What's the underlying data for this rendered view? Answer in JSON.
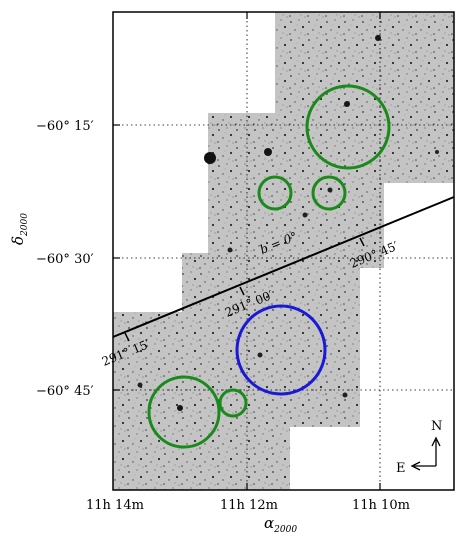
{
  "figure": {
    "y_axis_title": "δ",
    "y_axis_title_sub": "2000",
    "x_axis_title": "α",
    "x_axis_title_sub": "2000",
    "dec_ticks": [
      {
        "label": "−60° 15′"
      },
      {
        "label": "−60° 30′"
      },
      {
        "label": "−60° 45′"
      }
    ],
    "ra_ticks": [
      {
        "label": "11h 14m"
      },
      {
        "label": "11h 12m"
      },
      {
        "label": "11h 10m"
      }
    ],
    "galactic": {
      "plane_label": "b = 0°",
      "longitude_labels": [
        {
          "label": "290° 45′"
        },
        {
          "label": "291° 00′"
        },
        {
          "label": "291° 15′"
        }
      ]
    },
    "compass": {
      "north_label": "N",
      "east_label": "E"
    },
    "circles": [
      {
        "name": "large-green-ne",
        "color": "#1a8a1a"
      },
      {
        "name": "small-green-center-left",
        "color": "#1a8a1a"
      },
      {
        "name": "small-green-center-right",
        "color": "#1a8a1a"
      },
      {
        "name": "blue-center",
        "color": "#1a1ad6"
      },
      {
        "name": "large-green-sw",
        "color": "#1a8a1a"
      },
      {
        "name": "small-green-sw",
        "color": "#1a8a1a"
      }
    ],
    "colors": {
      "image_background": "#c9c9c9",
      "grid": "#000000",
      "green": "#1a8a1a",
      "blue": "#1a1ad6"
    }
  }
}
